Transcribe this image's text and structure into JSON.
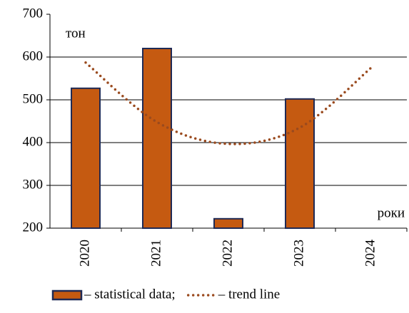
{
  "chart_data": {
    "type": "bar",
    "categories": [
      "2020",
      "2021",
      "2022",
      "2023",
      "2024"
    ],
    "y_label": "тон",
    "x_label": "роки",
    "series": [
      {
        "name": "– statistical data;",
        "type": "bar",
        "color": "#c55a11",
        "values": [
          527,
          620,
          222,
          502,
          null
        ]
      },
      {
        "name": "– trend line",
        "type": "line",
        "line_style": "dotted",
        "color": "#9a4a1e",
        "values": [
          587,
          448,
          397,
          435,
          575
        ]
      }
    ],
    "ylim": [
      200,
      700
    ],
    "yticks": [
      200,
      300,
      400,
      500,
      600,
      700
    ],
    "grid": true,
    "legend": "bottom"
  }
}
